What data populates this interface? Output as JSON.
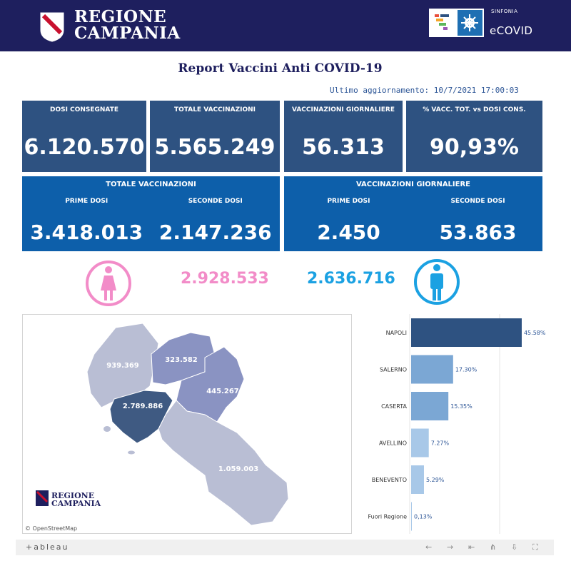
{
  "header": {
    "logo_line1": "REGIONE",
    "logo_line2": "CAMPANIA",
    "sinfonia": "SINFONIA",
    "ecovid": "eCOVID"
  },
  "title": "Report Vaccini Anti COVID-19",
  "last_update": "Ultimo aggiornamento: 10/7/2021 17:00:03",
  "kpis": [
    {
      "label": "DOSI CONSEGNATE",
      "value": "6.120.570"
    },
    {
      "label": "TOTALE VACCINAZIONI",
      "value": "5.565.249"
    },
    {
      "label": "VACCINAZIONI GIORNALIERE",
      "value": "56.313"
    },
    {
      "label": "% VACC. TOT. vs DOSI CONS.",
      "value": "90,93%"
    }
  ],
  "panels": [
    {
      "title": "TOTALE VACCINAZIONI",
      "prime_label": "PRIME DOSI",
      "prime_value": "3.418.013",
      "seconde_label": "SECONDE DOSI",
      "seconde_value": "2.147.236"
    },
    {
      "title": "VACCINAZIONI GIORNALIERE",
      "prime_label": "PRIME DOSI",
      "prime_value": "2.450",
      "seconde_label": "SECONDE DOSI",
      "seconde_value": "53.863"
    }
  ],
  "gender": {
    "female_value": "2.928.533",
    "male_value": "2.636.716",
    "female_color": "#f28cc8",
    "male_color": "#1ba1e2"
  },
  "map": {
    "labels": {
      "caserta": "939.369",
      "benevento": "323.582",
      "avellino": "445.267",
      "napoli": "2.789.886",
      "salerno": "1.059.003"
    },
    "legend_line1": "REGIONE",
    "legend_line2": "CAMPANIA",
    "attribution": "© OpenStreetMap"
  },
  "chart_data": {
    "type": "bar",
    "orientation": "horizontal",
    "categories": [
      "NAPOLI",
      "SALERNO",
      "CASERTA",
      "AVELLINO",
      "BENEVENTO",
      "Fuori Regione"
    ],
    "values": [
      45.58,
      17.3,
      15.35,
      7.27,
      5.29,
      0.13
    ],
    "value_labels": [
      "45.58%",
      "17.30%",
      "15.35%",
      "7.27%",
      "5.29%",
      "0,13%"
    ],
    "colors": [
      "#2e5281",
      "#7ba7d4",
      "#7ba7d4",
      "#a8c8e8",
      "#a8c8e8",
      "#a8c8e8"
    ],
    "xlim": [
      0,
      50
    ]
  },
  "footer": {
    "brand": "+ableau"
  }
}
